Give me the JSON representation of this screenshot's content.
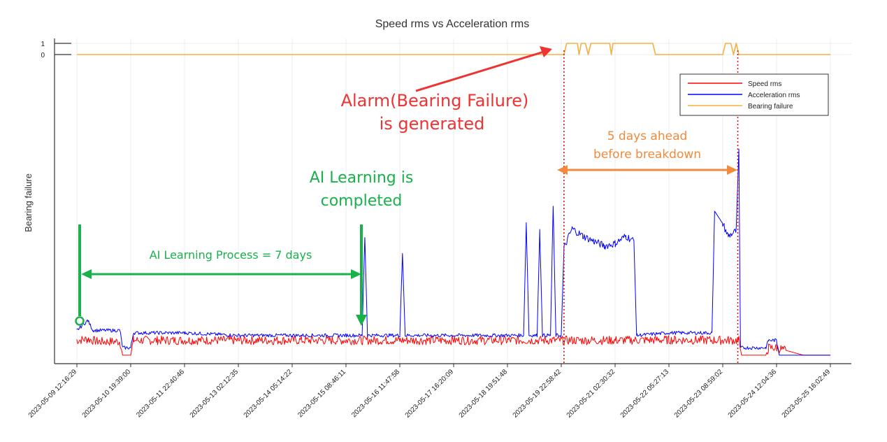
{
  "chart_data": {
    "type": "line",
    "title": "Speed rms vs Acceleration rms",
    "xlabel": "",
    "ylabel": "Bearing failure",
    "grid": true,
    "legend_position": "top-right",
    "x_ticks": [
      "2023-05-09 12:16:29",
      "2023-05-10 19:39:00",
      "2023-05-11 22:40:46",
      "2023-05-13 02:12:35",
      "2023-05-14 05:14:22",
      "2023-05-15 08:46:11",
      "2023-05-16 11:47:58",
      "2023-05-17 16:20:09",
      "2023-05-18 19:51:48",
      "2023-05-19 22:58:42",
      "2023-05-21 02:30:32",
      "2023-05-22 05:27:13",
      "2023-05-23 08:59:02",
      "2023-05-24 12:04:36",
      "2023-05-25 16:02:49"
    ],
    "y_ticks": [
      "1",
      "0"
    ],
    "series": [
      {
        "name": "Speed rms",
        "color": "#ff0000",
        "points": [
          [
            0,
            0.08
          ],
          [
            0.2,
            0.085
          ],
          [
            0.4,
            0.075
          ],
          [
            0.8,
            0.075
          ],
          [
            0.85,
            0.02
          ],
          [
            1.0,
            0.02
          ],
          [
            1.05,
            0.08
          ],
          [
            1.5,
            0.08
          ],
          [
            3,
            0.08
          ],
          [
            5,
            0.08
          ],
          [
            6,
            0.08
          ],
          [
            7,
            0.08
          ],
          [
            8,
            0.08
          ],
          [
            9,
            0.08
          ],
          [
            10,
            0.08
          ],
          [
            11,
            0.082
          ],
          [
            12,
            0.08
          ],
          [
            12.3,
            0.08
          ],
          [
            12.35,
            0.02
          ],
          [
            12.8,
            0.02
          ],
          [
            12.85,
            0.05
          ],
          [
            13,
            0.05
          ],
          [
            13.5,
            0.02
          ],
          [
            14,
            0.02
          ]
        ]
      },
      {
        "name": "Acceleration rms",
        "color": "#0000ff",
        "points": [
          [
            0,
            0.12
          ],
          [
            0.2,
            0.16
          ],
          [
            0.3,
            0.12
          ],
          [
            0.8,
            0.12
          ],
          [
            0.85,
            0.05
          ],
          [
            1.0,
            0.05
          ],
          [
            1.05,
            0.11
          ],
          [
            2,
            0.11
          ],
          [
            3,
            0.1
          ],
          [
            4,
            0.1
          ],
          [
            5,
            0.1
          ],
          [
            5.3,
            0.1
          ],
          [
            5.35,
            0.5
          ],
          [
            5.4,
            0.1
          ],
          [
            6,
            0.1
          ],
          [
            6.05,
            0.43
          ],
          [
            6.1,
            0.1
          ],
          [
            8.3,
            0.1
          ],
          [
            8.35,
            0.55
          ],
          [
            8.4,
            0.1
          ],
          [
            8.55,
            0.1
          ],
          [
            8.6,
            0.52
          ],
          [
            8.65,
            0.1
          ],
          [
            8.8,
            0.1
          ],
          [
            8.85,
            0.62
          ],
          [
            8.9,
            0.1
          ],
          [
            9.0,
            0.1
          ],
          [
            9.05,
            0.45
          ],
          [
            9.2,
            0.53
          ],
          [
            9.4,
            0.5
          ],
          [
            9.6,
            0.48
          ],
          [
            9.8,
            0.46
          ],
          [
            10.0,
            0.47
          ],
          [
            10.2,
            0.5
          ],
          [
            10.35,
            0.48
          ],
          [
            10.4,
            0.1
          ],
          [
            11,
            0.11
          ],
          [
            11.8,
            0.11
          ],
          [
            11.85,
            0.6
          ],
          [
            12.0,
            0.55
          ],
          [
            12.1,
            0.5
          ],
          [
            12.25,
            0.52
          ],
          [
            12.3,
            0.85
          ],
          [
            12.33,
            0.05
          ],
          [
            12.8,
            0.05
          ],
          [
            12.85,
            0.08
          ],
          [
            13.0,
            0.08
          ],
          [
            13.05,
            0.02
          ],
          [
            14,
            0.02
          ]
        ]
      },
      {
        "name": "Bearing failure",
        "color": "#f5b041",
        "points": [
          [
            0,
            0
          ],
          [
            8.8,
            0
          ],
          [
            9.05,
            0
          ],
          [
            9.1,
            1
          ],
          [
            9.3,
            1
          ],
          [
            9.33,
            0
          ],
          [
            9.37,
            1
          ],
          [
            9.45,
            1
          ],
          [
            9.5,
            0
          ],
          [
            9.55,
            1
          ],
          [
            9.9,
            1
          ],
          [
            9.93,
            0
          ],
          [
            9.96,
            1
          ],
          [
            10.7,
            1
          ],
          [
            10.75,
            0
          ],
          [
            12.0,
            0
          ],
          [
            12.05,
            1
          ],
          [
            12.15,
            1
          ],
          [
            12.2,
            0
          ],
          [
            12.25,
            1
          ],
          [
            12.3,
            0
          ],
          [
            14,
            0
          ]
        ]
      }
    ],
    "annotations": {
      "alarm": [
        "Alarm(Bearing Failure)",
        "is generated"
      ],
      "ahead": [
        "5 days ahead",
        "before breakdown"
      ],
      "learning_done": [
        "AI Learning is",
        "completed"
      ],
      "learning_process": "AI Learning Process = 7 days"
    }
  }
}
